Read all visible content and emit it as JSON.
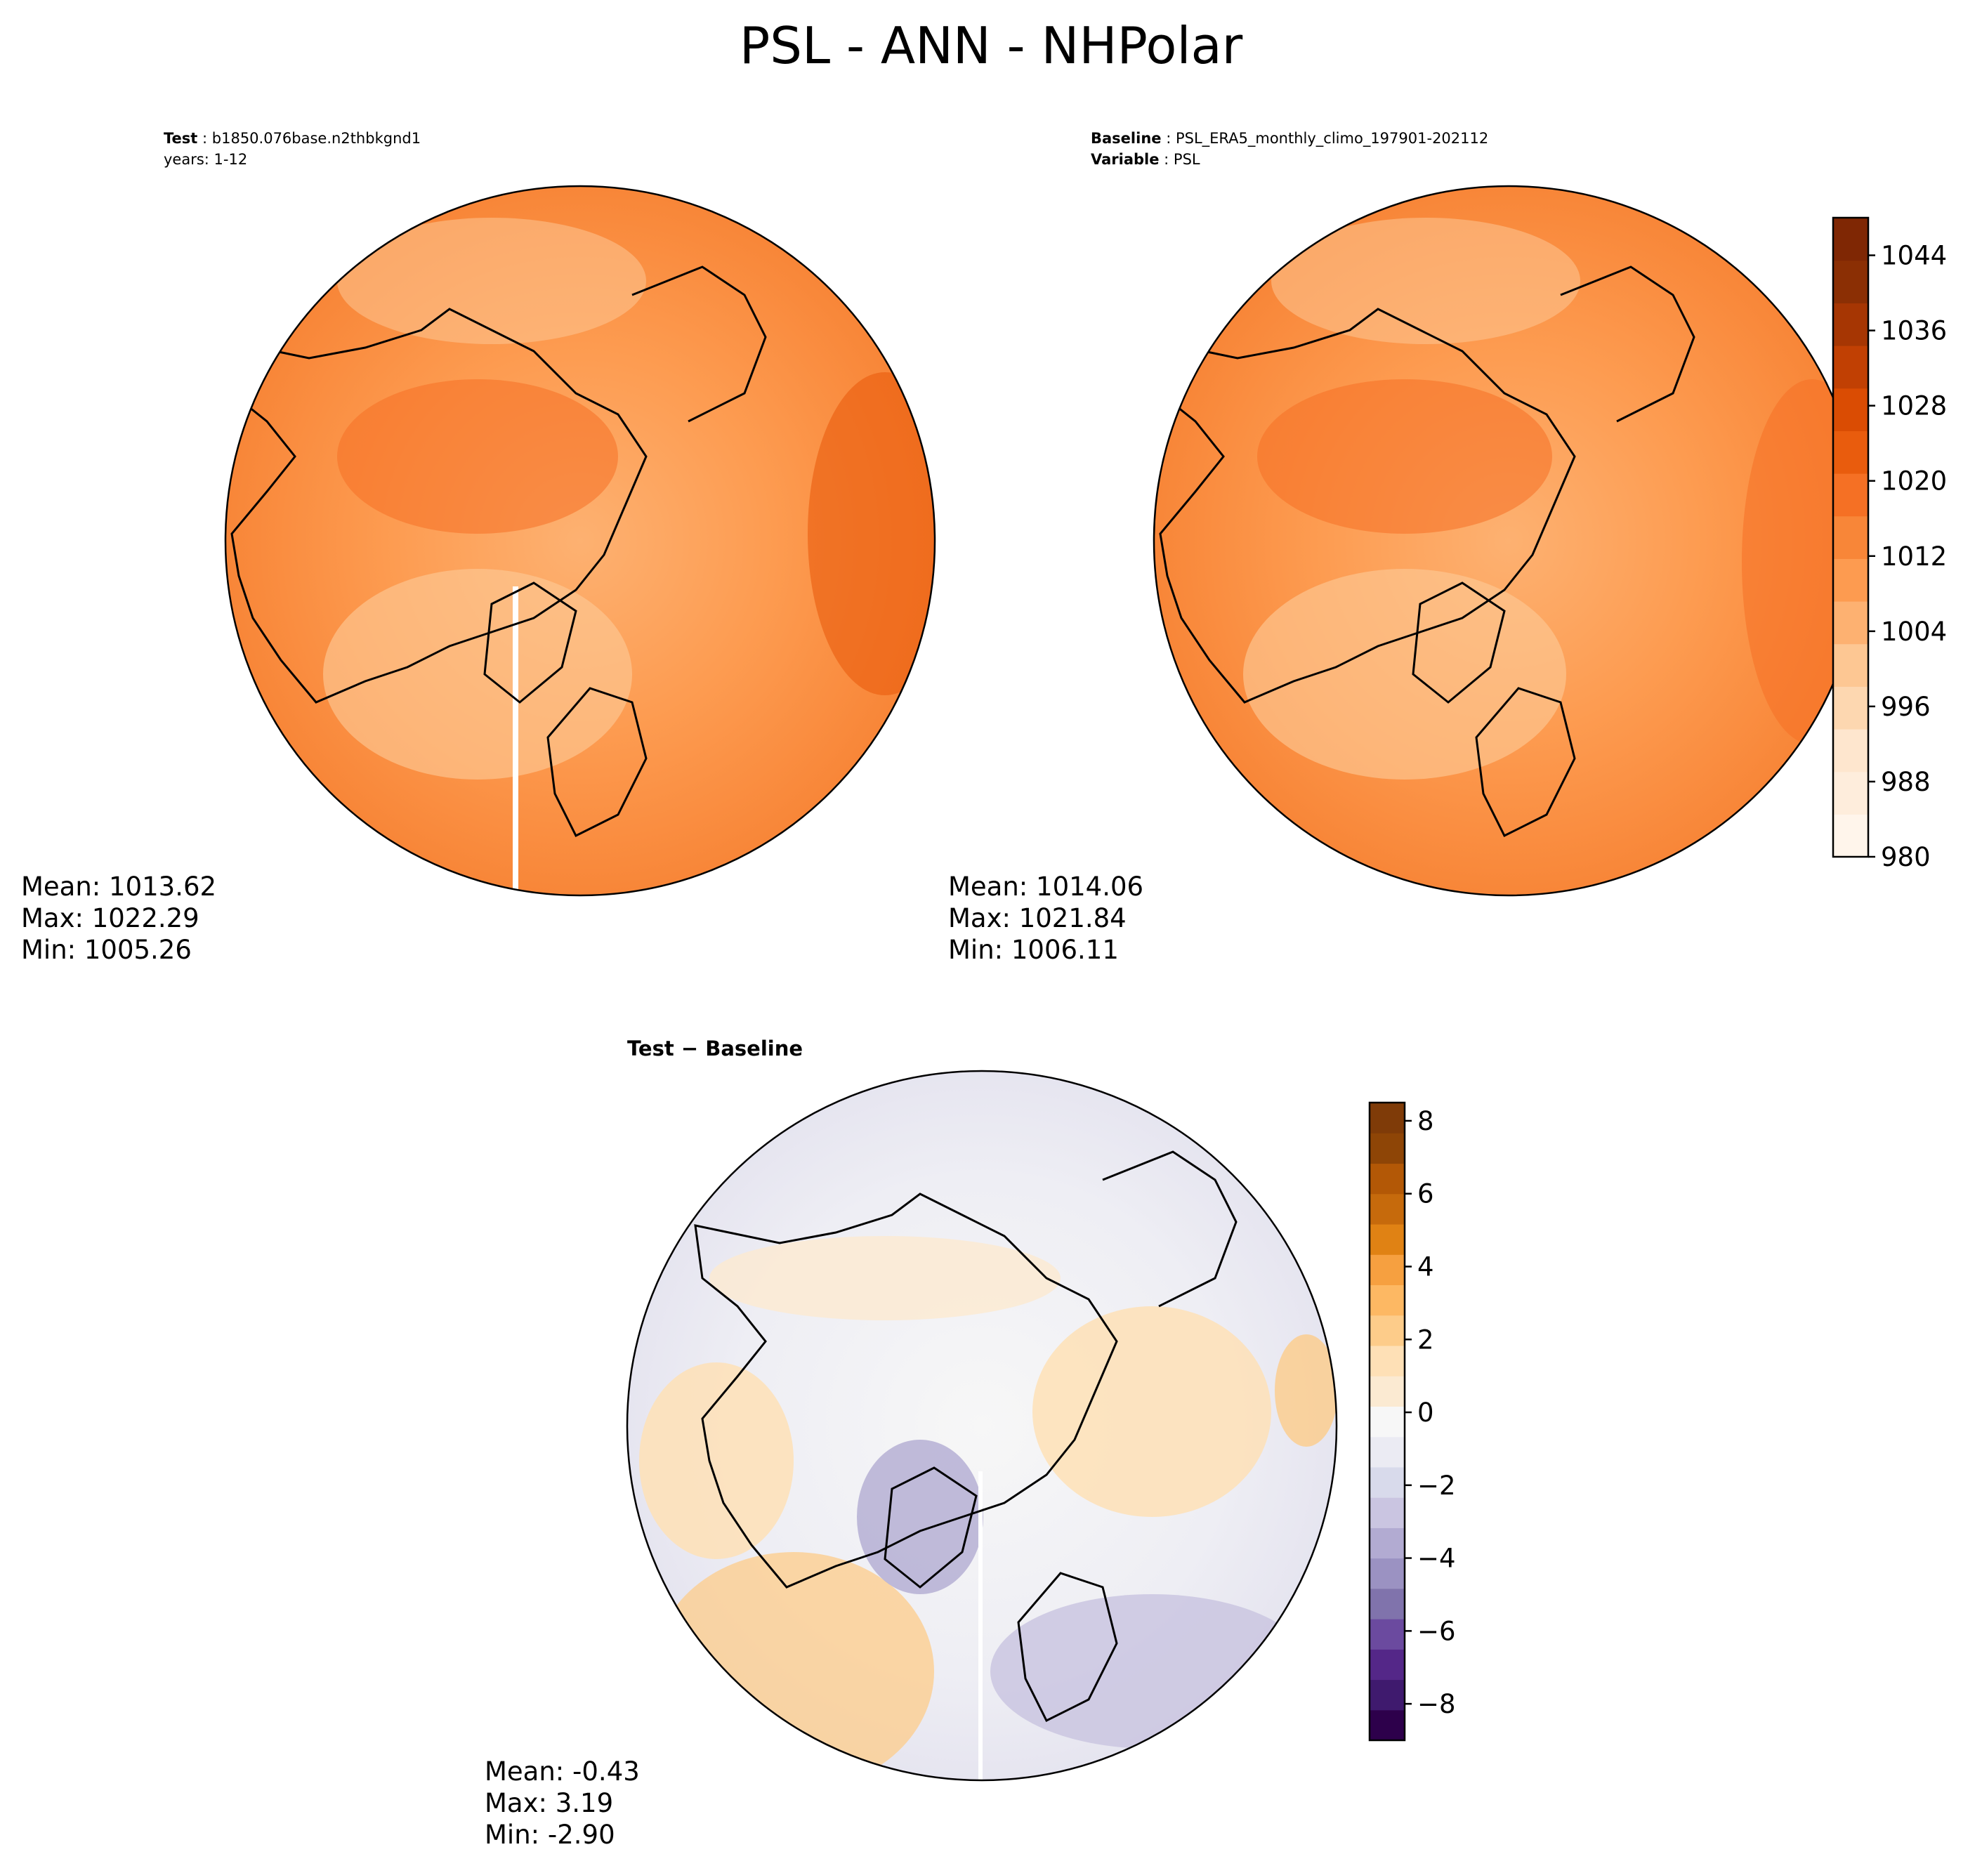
{
  "figure_title": "PSL - ANN - NHPolar",
  "panels": {
    "test": {
      "label_key": "Test",
      "label_value": "b1850.076base.n2thbkgnd1",
      "years_line": "years: 1-12",
      "stats": {
        "mean": "Mean: 1013.62",
        "max": "Max: 1022.29",
        "min": "Min: 1005.26"
      }
    },
    "baseline": {
      "label_key": "Baseline",
      "label_value": "PSL_ERA5_monthly_climo_197901-202112",
      "variable_key": "Variable",
      "variable_value": "PSL",
      "stats": {
        "mean": "Mean: 1014.06",
        "max": "Max: 1021.84",
        "min": "Min: 1006.11"
      }
    },
    "difference": {
      "title": "Test − Baseline",
      "stats": {
        "mean": "Mean: -0.43",
        "max": "Max:  3.19",
        "min": "Min: -2.90"
      }
    }
  },
  "colorbars": {
    "main": {
      "ticks": [
        "980",
        "988",
        "996",
        "1004",
        "1012",
        "1020",
        "1028",
        "1036",
        "1044"
      ],
      "tick_values": [
        980,
        988,
        996,
        1004,
        1012,
        1020,
        1028,
        1036,
        1044
      ],
      "range": [
        980,
        1048
      ],
      "colors": [
        "#fff5eb",
        "#feeddc",
        "#fee6ce",
        "#fdd7b0",
        "#fdc793",
        "#fdb171",
        "#fd9b50",
        "#f88638",
        "#f57024",
        "#e95c0d",
        "#da4c03",
        "#c14003",
        "#a63603",
        "#8b2f04",
        "#7f2704"
      ]
    },
    "diff": {
      "ticks": [
        "8",
        "6",
        "4",
        "2",
        "0",
        "−2",
        "−4",
        "−6",
        "−8"
      ],
      "tick_values": [
        8,
        6,
        4,
        2,
        0,
        -2,
        -4,
        -6,
        -8
      ],
      "range": [
        -9,
        8.5
      ],
      "colors": [
        "#2d004b",
        "#3f1a6e",
        "#542788",
        "#6b4a9f",
        "#8073ac",
        "#9b92c2",
        "#b2abd2",
        "#cac5e1",
        "#d8daeb",
        "#ebebf3",
        "#f7f7f7",
        "#fbead2",
        "#fee0b6",
        "#fdcc8a",
        "#fdb863",
        "#f6a040",
        "#e08214",
        "#c66a0c",
        "#b35806",
        "#8e4506",
        "#7f3b08"
      ]
    }
  }
}
